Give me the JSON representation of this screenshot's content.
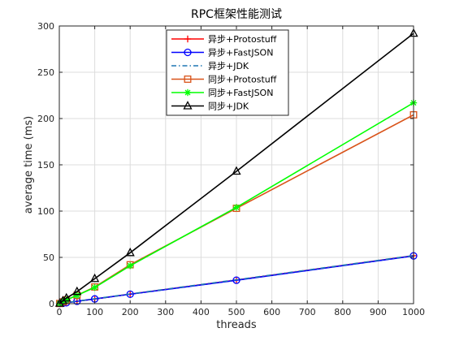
{
  "chart_data": {
    "type": "line",
    "title": "RPC框架性能测试",
    "xlabel": "threads",
    "ylabel": "average time (ms)",
    "xlim": [
      0,
      1000
    ],
    "ylim": [
      0,
      300
    ],
    "xticks": [
      0,
      100,
      200,
      300,
      400,
      500,
      600,
      700,
      800,
      900,
      1000
    ],
    "yticks": [
      0,
      50,
      100,
      150,
      200,
      250,
      300
    ],
    "grid": true,
    "legend_position": "top-center",
    "x": [
      1,
      10,
      20,
      50,
      100,
      200,
      500,
      1000
    ],
    "series": [
      {
        "name": "异步+Protostuff",
        "color": "#ff0000",
        "marker": "plus",
        "dash": "solid",
        "values": [
          0.1,
          0.5,
          1.0,
          2.6,
          5.1,
          10.3,
          25.5,
          51.8
        ]
      },
      {
        "name": "异步+FastJSON",
        "color": "#0000ff",
        "marker": "circle",
        "dash": "solid",
        "values": [
          0.1,
          0.5,
          1.0,
          2.6,
          5.1,
          10.2,
          25.3,
          51.6
        ]
      },
      {
        "name": "异步+JDK",
        "color": "#1f77b4",
        "marker": "none",
        "dash": "dashdot",
        "values": [
          0.1,
          0.6,
          1.1,
          2.7,
          5.3,
          10.5,
          25.8,
          52.0
        ]
      },
      {
        "name": "同步+Protostuff",
        "color": "#d95319",
        "marker": "square",
        "dash": "solid",
        "values": [
          0.2,
          2.0,
          4.0,
          9.0,
          18.0,
          42.0,
          103.0,
          204.0
        ]
      },
      {
        "name": "同步+FastJSON",
        "color": "#00ff00",
        "marker": "asterisk",
        "dash": "solid",
        "values": [
          0.2,
          2.0,
          4.0,
          9.0,
          17.5,
          41.0,
          104.0,
          217.0
        ]
      },
      {
        "name": "同步+JDK",
        "color": "#000000",
        "marker": "triangle",
        "dash": "solid",
        "values": [
          0.3,
          3.0,
          6.0,
          13.0,
          27.0,
          55.0,
          143.0,
          292.0
        ]
      }
    ]
  }
}
